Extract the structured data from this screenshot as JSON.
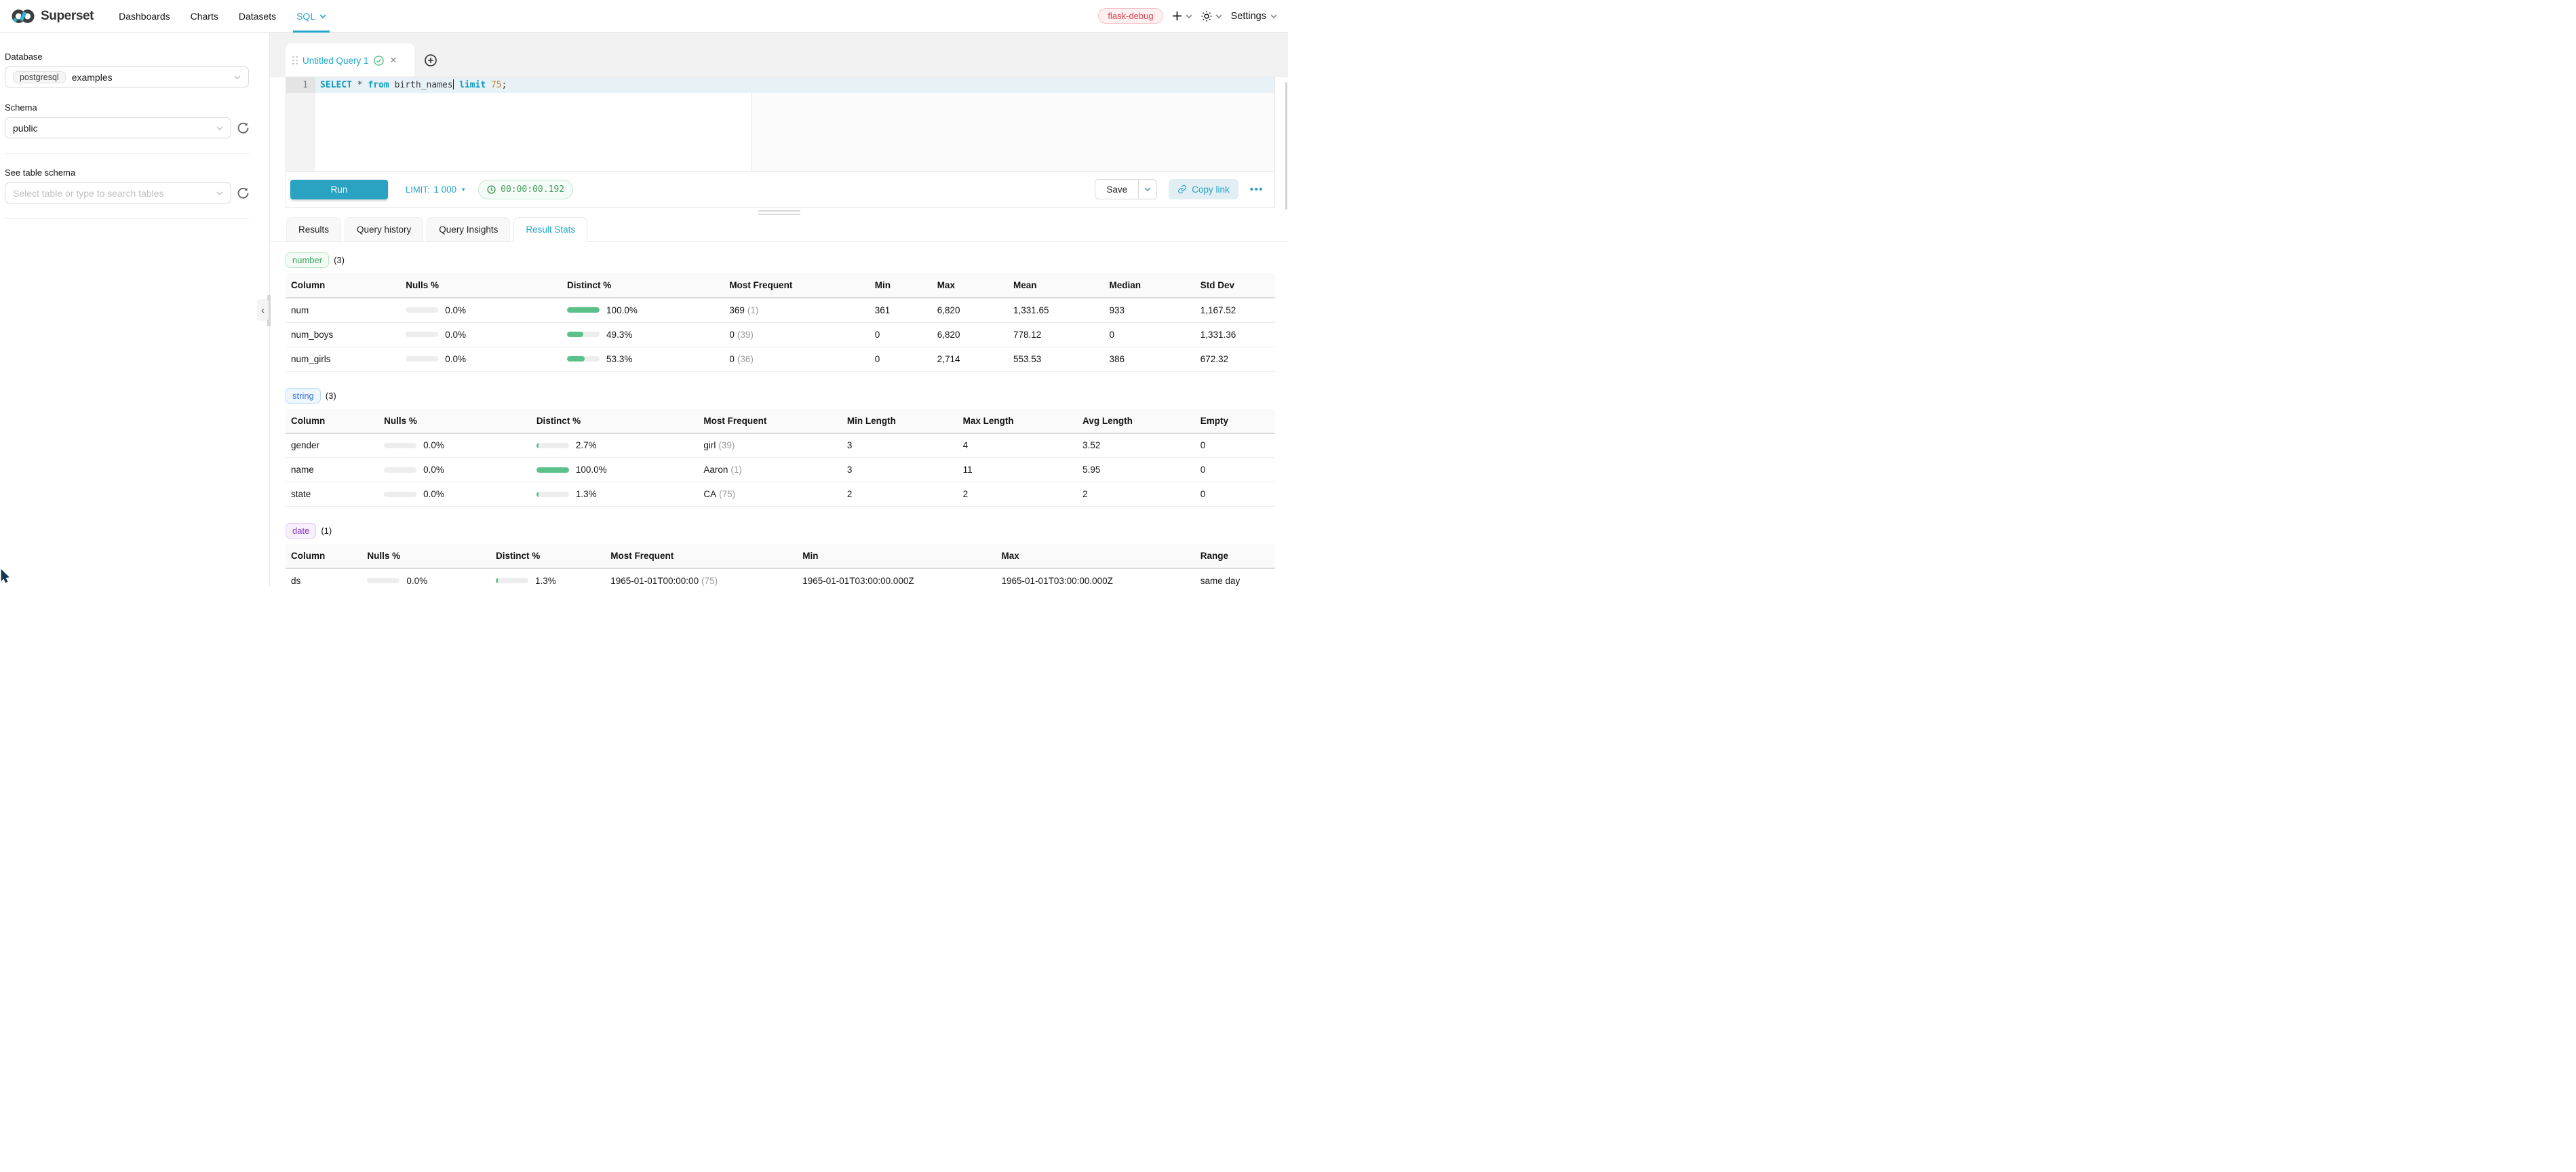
{
  "navbar": {
    "brand": "Superset",
    "menu": [
      {
        "label": "Dashboards"
      },
      {
        "label": "Charts"
      },
      {
        "label": "Datasets"
      },
      {
        "label": "SQL"
      }
    ],
    "environment_badge": "flask-debug",
    "settings": "Settings"
  },
  "sidebar": {
    "database_label": "Database",
    "database_engine": "postgresql",
    "database_name": "examples",
    "schema_label": "Schema",
    "schema_value": "public",
    "table_label": "See table schema",
    "table_placeholder": "Select table or type to search tables"
  },
  "editor": {
    "tab_title": "Untitled Query 1",
    "line_number": "1",
    "sql": {
      "kw_select": "SELECT",
      "star": " * ",
      "kw_from": "from",
      "ident": " birth_names",
      "kw_limit": "limit",
      "number": " 75",
      "semicolon": ";"
    }
  },
  "toolbar": {
    "run": "Run",
    "limit_label": "LIMIT:",
    "limit_value": "1 000",
    "elapsed": "00:00:00.192",
    "save": "Save",
    "copy_link": "Copy link",
    "more": "•••"
  },
  "result_tabs": [
    {
      "label": "Results"
    },
    {
      "label": "Query history"
    },
    {
      "label": "Query Insights"
    },
    {
      "label": "Result Stats"
    }
  ],
  "colors": {
    "primary": "#20a7c9",
    "bar_fill": "#5ac189",
    "timer_green": "#459e60",
    "badge_red": "#e0424f"
  },
  "stats_sections": [
    {
      "tag": "number",
      "count": "(3)",
      "tag_colors": {
        "text": "#37a35c",
        "bg": "#f4fbf5",
        "border": "#bce6c8"
      },
      "columns": [
        "Column",
        "Nulls %",
        "Distinct %",
        "Most Frequent",
        "Min",
        "Max",
        "Mean",
        "Median",
        "Std Dev"
      ],
      "rows": [
        {
          "column": "num",
          "nulls": {
            "pct": 0,
            "label": "0.0%"
          },
          "distinct": {
            "pct": 100,
            "label": "100.0%"
          },
          "most_frequent": {
            "value": "369",
            "count": "(1)"
          },
          "values": [
            "361",
            "6,820",
            "1,331.65",
            "933",
            "1,167.52"
          ]
        },
        {
          "column": "num_boys",
          "nulls": {
            "pct": 0,
            "label": "0.0%"
          },
          "distinct": {
            "pct": 49.3,
            "label": "49.3%"
          },
          "most_frequent": {
            "value": "0",
            "count": "(39)"
          },
          "values": [
            "0",
            "6,820",
            "778.12",
            "0",
            "1,331.36"
          ]
        },
        {
          "column": "num_girls",
          "nulls": {
            "pct": 0,
            "label": "0.0%"
          },
          "distinct": {
            "pct": 53.3,
            "label": "53.3%"
          },
          "most_frequent": {
            "value": "0",
            "count": "(36)"
          },
          "values": [
            "0",
            "2,714",
            "553.53",
            "386",
            "672.32"
          ]
        }
      ]
    },
    {
      "tag": "string",
      "count": "(3)",
      "tag_colors": {
        "text": "#3573d5",
        "bg": "#eef6ff",
        "border": "#b5d6f8"
      },
      "columns": [
        "Column",
        "Nulls %",
        "Distinct %",
        "Most Frequent",
        "Min Length",
        "Max Length",
        "Avg Length",
        "Empty"
      ],
      "rows": [
        {
          "column": "gender",
          "nulls": {
            "pct": 0,
            "label": "0.0%"
          },
          "distinct": {
            "pct": 2.7,
            "label": "2.7%"
          },
          "most_frequent": {
            "value": "girl",
            "count": "(39)"
          },
          "values": [
            "3",
            "4",
            "3.52",
            "0"
          ]
        },
        {
          "column": "name",
          "nulls": {
            "pct": 0,
            "label": "0.0%"
          },
          "distinct": {
            "pct": 100,
            "label": "100.0%"
          },
          "most_frequent": {
            "value": "Aaron",
            "count": "(1)"
          },
          "values": [
            "3",
            "11",
            "5.95",
            "0"
          ]
        },
        {
          "column": "state",
          "nulls": {
            "pct": 0,
            "label": "0.0%"
          },
          "distinct": {
            "pct": 1.3,
            "label": "1.3%"
          },
          "most_frequent": {
            "value": "CA",
            "count": "(75)"
          },
          "values": [
            "2",
            "2",
            "2",
            "0"
          ]
        }
      ]
    },
    {
      "tag": "date",
      "count": "(1)",
      "tag_colors": {
        "text": "#8b34c3",
        "bg": "#f9f0fe",
        "border": "#ddc5f2"
      },
      "columns": [
        "Column",
        "Nulls %",
        "Distinct %",
        "Most Frequent",
        "Min",
        "Max",
        "Range"
      ],
      "rows": [
        {
          "column": "ds",
          "nulls": {
            "pct": 0,
            "label": "0.0%"
          },
          "distinct": {
            "pct": 1.3,
            "label": "1.3%"
          },
          "most_frequent": {
            "value": "1965-01-01T00:00:00",
            "count": "(75)"
          },
          "values": [
            "1965-01-01T03:00:00.000Z",
            "1965-01-01T03:00:00.000Z",
            "same day"
          ]
        }
      ]
    }
  ]
}
